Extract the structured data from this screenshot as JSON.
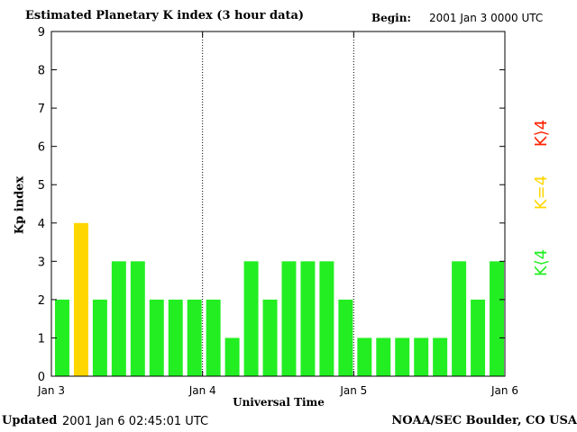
{
  "header": {
    "title": "Estimated Planetary K index (3 hour data)",
    "begin_label": "Begin:",
    "begin_value": "2001 Jan 3 0000 UTC"
  },
  "footer": {
    "updated_label": "Updated",
    "updated_value": "2001 Jan  6 02:45:01 UTC",
    "org": "NOAA/SEC Boulder, CO USA"
  },
  "legend": [
    {
      "label": "K⟨4",
      "color": "#22ee22"
    },
    {
      "label": "K=4",
      "color": "#ffd700"
    },
    {
      "label": "K⟩4",
      "color": "#ff2200"
    }
  ],
  "chart_data": {
    "type": "bar",
    "title": "Estimated Planetary K index (3 hour data)",
    "xlabel": "Universal Time",
    "ylabel": "Kp index",
    "ylim": [
      0,
      9
    ],
    "yticks": [
      "0",
      "1",
      "2",
      "3",
      "4",
      "5",
      "6",
      "7",
      "8",
      "9"
    ],
    "xticks": [
      "Jan 3",
      "Jan 4",
      "Jan 5",
      "Jan 6"
    ],
    "categories": [
      "Jan 3 00",
      "Jan 3 03",
      "Jan 3 06",
      "Jan 3 09",
      "Jan 3 12",
      "Jan 3 15",
      "Jan 3 18",
      "Jan 3 21",
      "Jan 4 00",
      "Jan 4 03",
      "Jan 4 06",
      "Jan 4 09",
      "Jan 4 12",
      "Jan 4 15",
      "Jan 4 18",
      "Jan 4 21",
      "Jan 5 00",
      "Jan 5 03",
      "Jan 5 06",
      "Jan 5 09",
      "Jan 5 12",
      "Jan 5 15",
      "Jan 5 18",
      "Jan 5 21"
    ],
    "values": [
      2,
      4,
      2,
      3,
      3,
      2,
      2,
      2,
      2,
      1,
      3,
      2,
      3,
      3,
      3,
      2,
      1,
      1,
      1,
      1,
      1,
      3,
      2,
      3
    ],
    "colors": {
      "below4": "#22ee22",
      "equal4": "#ffd700",
      "above4": "#ff2200"
    },
    "grid": false,
    "day_separators": "dotted"
  }
}
